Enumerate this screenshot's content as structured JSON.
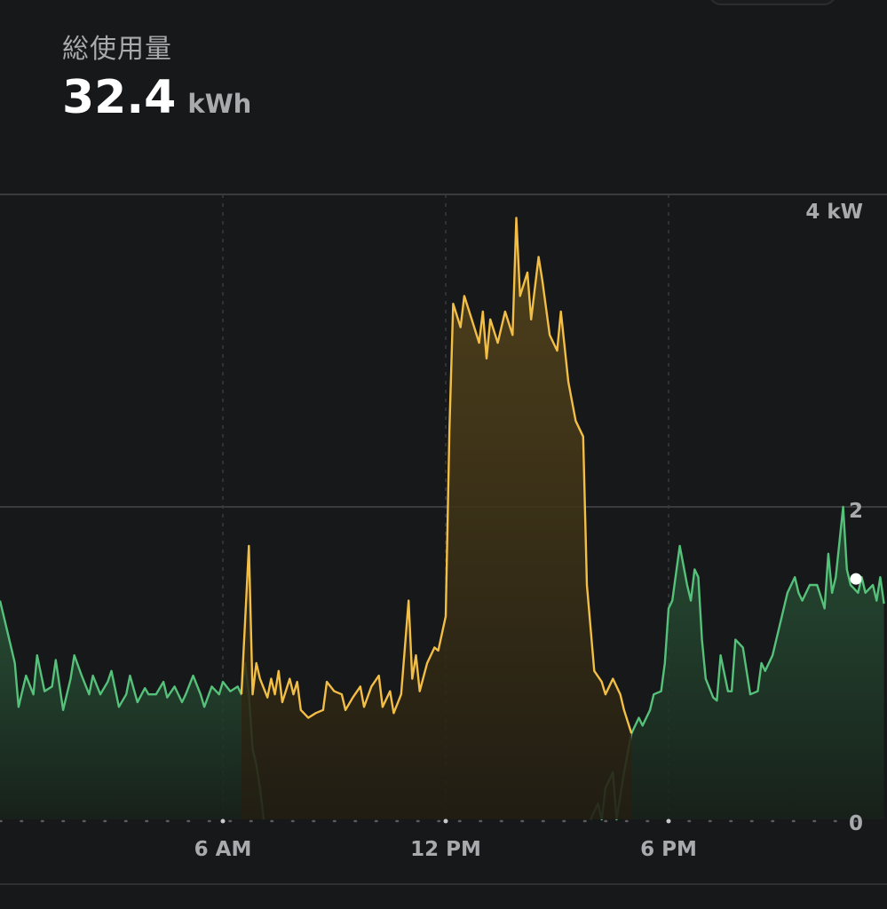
{
  "header": {
    "title": "総使用量",
    "total_value": "32.4",
    "total_unit": "kWh"
  },
  "chart_data": {
    "type": "area",
    "x_unit": "hour of day",
    "x_ticks": [
      {
        "hour": 6,
        "label": "6 AM"
      },
      {
        "hour": 12,
        "label": "12 PM"
      },
      {
        "hour": 18,
        "label": "6 PM"
      }
    ],
    "y_ticks": [
      {
        "value": 4,
        "label": "4 kW"
      },
      {
        "value": 2,
        "label": "2"
      },
      {
        "value": 0,
        "label": "0"
      }
    ],
    "ylim": [
      0,
      4
    ],
    "xlim": [
      0,
      24
    ],
    "grid": true,
    "colors": {
      "green_line": "#56c17a",
      "amber_line": "#f2be45",
      "green_fill_top": "#2b5b3b",
      "amber_fill_top": "#5c4a1c"
    },
    "series": [
      {
        "color": "green",
        "points": [
          [
            0.0,
            1.4
          ],
          [
            0.2,
            1.2
          ],
          [
            0.4,
            1.0
          ],
          [
            0.5,
            0.72
          ],
          [
            0.7,
            0.92
          ],
          [
            0.9,
            0.8
          ],
          [
            1.0,
            1.05
          ],
          [
            1.2,
            0.82
          ],
          [
            1.4,
            0.85
          ],
          [
            1.5,
            1.02
          ],
          [
            1.7,
            0.7
          ],
          [
            1.9,
            0.9
          ],
          [
            2.0,
            1.05
          ],
          [
            2.2,
            0.92
          ],
          [
            2.4,
            0.8
          ],
          [
            2.5,
            0.92
          ],
          [
            2.7,
            0.8
          ],
          [
            2.9,
            0.88
          ],
          [
            3.0,
            0.95
          ],
          [
            3.2,
            0.72
          ],
          [
            3.4,
            0.8
          ],
          [
            3.5,
            0.92
          ],
          [
            3.7,
            0.75
          ],
          [
            3.9,
            0.84
          ],
          [
            4.0,
            0.8
          ],
          [
            4.2,
            0.8
          ],
          [
            4.4,
            0.88
          ],
          [
            4.5,
            0.78
          ],
          [
            4.7,
            0.85
          ],
          [
            4.9,
            0.75
          ],
          [
            5.0,
            0.8
          ],
          [
            5.2,
            0.92
          ],
          [
            5.4,
            0.8
          ],
          [
            5.5,
            0.72
          ],
          [
            5.7,
            0.85
          ],
          [
            5.9,
            0.8
          ],
          [
            6.0,
            0.88
          ],
          [
            6.2,
            0.82
          ],
          [
            6.4,
            0.85
          ],
          [
            6.5,
            0.8
          ],
          [
            6.6,
            1.0
          ],
          [
            6.7,
            0.8
          ],
          [
            6.8,
            0.45
          ],
          [
            6.9,
            0.35
          ],
          [
            7.0,
            0.2
          ],
          [
            7.1,
            0.0
          ]
        ]
      },
      {
        "color": "green",
        "points": [
          [
            15.9,
            0.0
          ],
          [
            16.1,
            0.1
          ],
          [
            16.2,
            0.0
          ],
          [
            16.3,
            0.2
          ],
          [
            16.5,
            0.3
          ],
          [
            16.6,
            0.0
          ],
          [
            16.8,
            0.3
          ],
          [
            17.0,
            0.55
          ],
          [
            17.2,
            0.65
          ],
          [
            17.3,
            0.6
          ],
          [
            17.5,
            0.7
          ],
          [
            17.6,
            0.8
          ],
          [
            17.8,
            0.82
          ],
          [
            17.9,
            1.0
          ],
          [
            18.0,
            1.35
          ],
          [
            18.1,
            1.4
          ],
          [
            18.3,
            1.75
          ],
          [
            18.5,
            1.5
          ],
          [
            18.6,
            1.4
          ],
          [
            18.7,
            1.6
          ],
          [
            18.8,
            1.55
          ],
          [
            18.9,
            1.15
          ],
          [
            19.0,
            0.9
          ],
          [
            19.2,
            0.78
          ],
          [
            19.3,
            0.76
          ],
          [
            19.4,
            1.05
          ],
          [
            19.6,
            0.82
          ],
          [
            19.7,
            0.82
          ],
          [
            19.8,
            1.15
          ],
          [
            20.0,
            1.1
          ],
          [
            20.2,
            0.8
          ],
          [
            20.4,
            0.82
          ],
          [
            20.5,
            1.0
          ],
          [
            20.6,
            0.95
          ],
          [
            20.8,
            1.05
          ],
          [
            21.0,
            1.25
          ],
          [
            21.2,
            1.45
          ],
          [
            21.4,
            1.55
          ],
          [
            21.5,
            1.45
          ],
          [
            21.6,
            1.4
          ],
          [
            21.8,
            1.5
          ],
          [
            22.0,
            1.5
          ],
          [
            22.2,
            1.35
          ],
          [
            22.3,
            1.7
          ],
          [
            22.4,
            1.45
          ],
          [
            22.5,
            1.55
          ],
          [
            22.7,
            2.0
          ],
          [
            22.8,
            1.6
          ],
          [
            22.9,
            1.5
          ],
          [
            23.1,
            1.45
          ],
          [
            23.2,
            1.55
          ],
          [
            23.3,
            1.45
          ],
          [
            23.5,
            1.5
          ],
          [
            23.6,
            1.4
          ],
          [
            23.7,
            1.55
          ],
          [
            23.8,
            1.38
          ]
        ]
      },
      {
        "color": "amber",
        "points": [
          [
            6.5,
            0.8
          ],
          [
            6.7,
            1.75
          ],
          [
            6.8,
            0.8
          ],
          [
            6.9,
            1.0
          ],
          [
            7.0,
            0.9
          ],
          [
            7.2,
            0.78
          ],
          [
            7.3,
            0.9
          ],
          [
            7.4,
            0.8
          ],
          [
            7.5,
            0.95
          ],
          [
            7.6,
            0.75
          ],
          [
            7.8,
            0.9
          ],
          [
            7.9,
            0.8
          ],
          [
            8.0,
            0.88
          ],
          [
            8.1,
            0.7
          ],
          [
            8.3,
            0.65
          ],
          [
            8.5,
            0.68
          ],
          [
            8.7,
            0.7
          ],
          [
            8.8,
            0.88
          ],
          [
            9.0,
            0.82
          ],
          [
            9.2,
            0.8
          ],
          [
            9.3,
            0.7
          ],
          [
            9.5,
            0.78
          ],
          [
            9.7,
            0.85
          ],
          [
            9.8,
            0.72
          ],
          [
            10.0,
            0.85
          ],
          [
            10.2,
            0.92
          ],
          [
            10.3,
            0.72
          ],
          [
            10.5,
            0.82
          ],
          [
            10.6,
            0.68
          ],
          [
            10.8,
            0.8
          ],
          [
            11.0,
            1.4
          ],
          [
            11.1,
            0.9
          ],
          [
            11.2,
            1.05
          ],
          [
            11.3,
            0.82
          ],
          [
            11.5,
            1.0
          ],
          [
            11.7,
            1.1
          ],
          [
            11.8,
            1.08
          ],
          [
            12.0,
            1.3
          ],
          [
            12.1,
            2.5
          ],
          [
            12.2,
            3.3
          ],
          [
            12.4,
            3.15
          ],
          [
            12.5,
            3.35
          ],
          [
            12.7,
            3.2
          ],
          [
            12.9,
            3.05
          ],
          [
            13.0,
            3.25
          ],
          [
            13.1,
            2.95
          ],
          [
            13.2,
            3.2
          ],
          [
            13.4,
            3.05
          ],
          [
            13.6,
            3.25
          ],
          [
            13.8,
            3.1
          ],
          [
            13.9,
            3.85
          ],
          [
            14.0,
            3.35
          ],
          [
            14.2,
            3.5
          ],
          [
            14.3,
            3.2
          ],
          [
            14.5,
            3.6
          ],
          [
            14.6,
            3.45
          ],
          [
            14.8,
            3.1
          ],
          [
            15.0,
            3.0
          ],
          [
            15.1,
            3.25
          ],
          [
            15.3,
            2.8
          ],
          [
            15.5,
            2.55
          ],
          [
            15.7,
            2.45
          ],
          [
            15.8,
            1.5
          ],
          [
            16.0,
            0.95
          ],
          [
            16.2,
            0.88
          ],
          [
            16.3,
            0.8
          ],
          [
            16.5,
            0.9
          ],
          [
            16.7,
            0.8
          ],
          [
            16.8,
            0.7
          ],
          [
            17.0,
            0.55
          ]
        ]
      }
    ]
  }
}
